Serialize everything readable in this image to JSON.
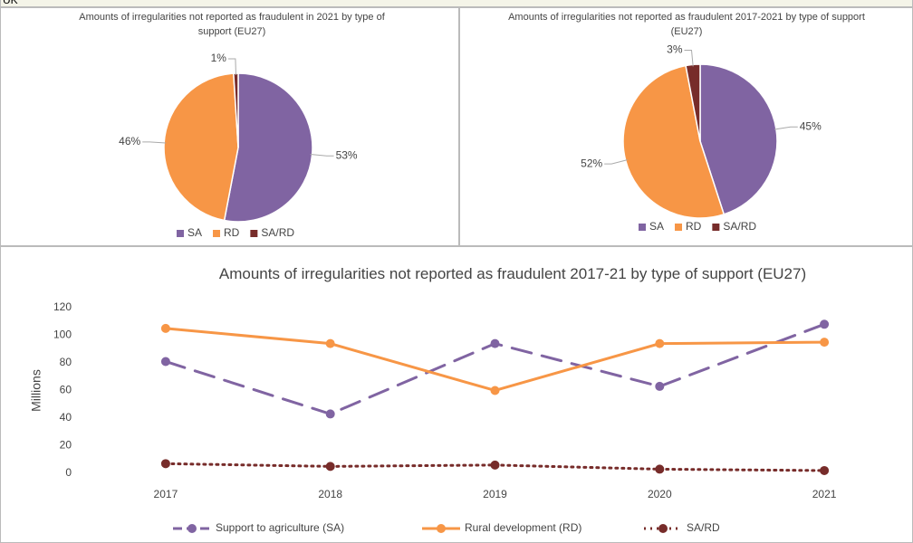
{
  "table_fragment": {
    "row_label": "UK"
  },
  "chart_data": [
    {
      "type": "pie",
      "title": "Amounts of irregularities not reported as fraudulent in 2021 by type of support (EU27)",
      "categories": [
        "SA",
        "RD",
        "SA/RD"
      ],
      "values": [
        53,
        46,
        1
      ],
      "value_labels": [
        "53%",
        "46%",
        "1%"
      ],
      "colors": [
        "#8064a2",
        "#f79646",
        "#772c2a"
      ],
      "legend": "bottom"
    },
    {
      "type": "pie",
      "title": "Amounts of irregularities not reported as fraudulent 2017-2021 by type of support (EU27)",
      "categories": [
        "SA",
        "RD",
        "SA/RD"
      ],
      "values": [
        45,
        52,
        3
      ],
      "value_labels": [
        "45%",
        "52%",
        "3%"
      ],
      "colors": [
        "#8064a2",
        "#f79646",
        "#772c2a"
      ],
      "legend": "bottom"
    },
    {
      "type": "line",
      "title": "Amounts of irregularities not reported as fraudulent 2017-21 by type of support (EU27)",
      "y_label": "Millions",
      "categories": [
        "2017",
        "2018",
        "2019",
        "2020",
        "2021"
      ],
      "ylim": [
        0,
        120
      ],
      "yticks": [
        0,
        20,
        40,
        60,
        80,
        100,
        120
      ],
      "grid": false,
      "legend": "bottom",
      "series": [
        {
          "name": "Support to agriculture (SA)",
          "color": "#8064a2",
          "dash": "dashed",
          "values": [
            81,
            43,
            94,
            63,
            108
          ]
        },
        {
          "name": "Rural development (RD)",
          "color": "#f79646",
          "dash": "solid",
          "values": [
            105,
            94,
            60,
            94,
            95
          ]
        },
        {
          "name": "SA/RD",
          "color": "#772c2a",
          "dash": "dotted",
          "values": [
            7,
            5,
            6,
            3,
            2
          ]
        }
      ]
    }
  ]
}
